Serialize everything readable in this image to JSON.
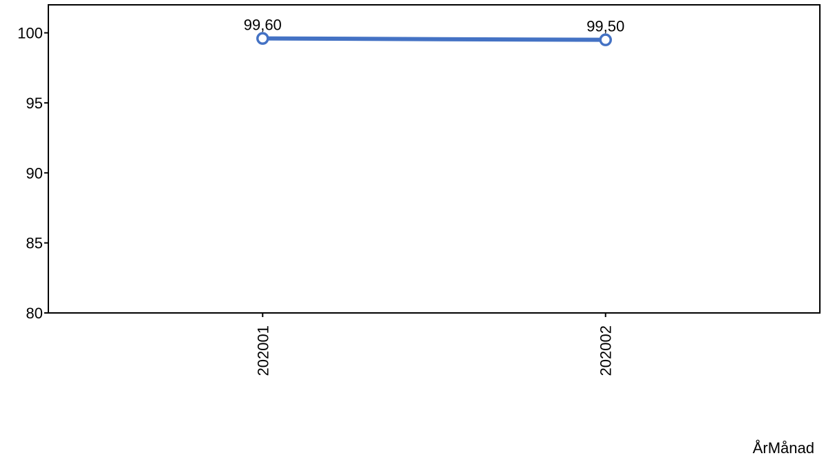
{
  "chart_data": {
    "type": "line",
    "categories": [
      "202001",
      "202002"
    ],
    "series": [
      {
        "values": [
          99.6,
          99.5
        ],
        "data_labels": [
          "99,60",
          "99,50"
        ],
        "color": "#4472c4"
      }
    ],
    "title": "",
    "xlabel": "ÅrMånad",
    "ylabel": "",
    "ylim": [
      80,
      102
    ],
    "yticks": [
      80,
      85,
      90,
      95,
      100
    ],
    "grid": false,
    "legend": "none"
  }
}
